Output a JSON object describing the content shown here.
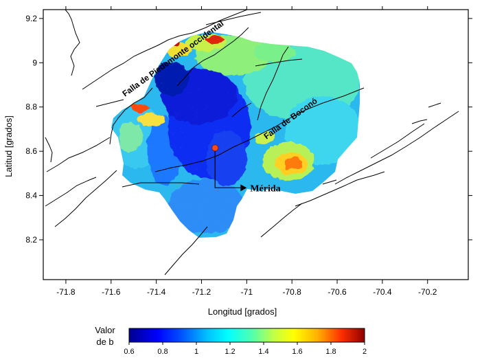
{
  "map": {
    "x_axis": {
      "label": "Longitud [grados]",
      "ticks": [
        "-71.8",
        "-71.6",
        "-71.4",
        "-71.2",
        "-71",
        "-70.8",
        "-70.6",
        "-70.4",
        "-70.2"
      ],
      "tick_values": [
        -71.8,
        -71.6,
        -71.4,
        -71.2,
        -71.0,
        -70.8,
        -70.6,
        -70.4,
        -70.2
      ],
      "range": [
        -71.9,
        -70.02
      ]
    },
    "y_axis": {
      "label": "Latitud [grados]",
      "ticks": [
        "8.2",
        "8.4",
        "8.6",
        "8.8",
        "9",
        "9.2"
      ],
      "tick_values": [
        8.2,
        8.4,
        8.6,
        8.8,
        9.0,
        9.2
      ],
      "range": [
        8.02,
        9.24
      ]
    },
    "labels": {
      "fault_piedemonte": "Falla de Piedemonte occidental",
      "fault_bocono": "Falla de Boconó",
      "city": "Mérida"
    },
    "city_point": {
      "lon": -71.14,
      "lat": 8.615
    },
    "city_arrow_end": {
      "lon": -71.0,
      "lat": 8.435
    },
    "colors": {
      "city_point": "#ff4a1a",
      "faults": "#000000"
    }
  },
  "colorbar": {
    "title_line1": "Valor",
    "title_line2": "de b",
    "ticks": [
      "0.6",
      "0.8",
      "1",
      "1.2",
      "1.4",
      "1.6",
      "1.8",
      "2"
    ],
    "range": [
      0.6,
      2.0
    ]
  }
}
